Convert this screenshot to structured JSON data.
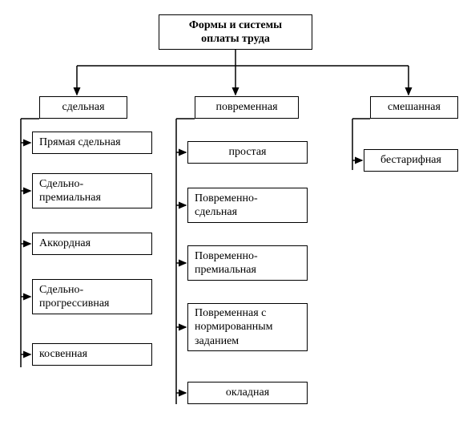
{
  "diagram": {
    "type": "tree",
    "background_color": "#ffffff",
    "stroke_color": "#000000",
    "stroke_width": 1.5,
    "font_family": "Times New Roman",
    "font_size_pt": 11,
    "root": {
      "title_line1": "Формы и системы",
      "title_line2": "оплаты труда"
    },
    "branches": {
      "piecework": {
        "header": "сдельная",
        "items": [
          "Прямая сдельная",
          "Сдельно-\nпремиальная",
          "Аккордная",
          "Сдельно-\nпрогрессивная",
          "косвенная"
        ]
      },
      "timebased": {
        "header": "повременная",
        "items": [
          "простая",
          "Повременно-\nсдельная",
          "Повременно-\nпремиальная",
          "Повременная с\nнормированным\nзаданием",
          "окладная"
        ]
      },
      "mixed": {
        "header": "смешанная",
        "items": [
          "бестарифная"
        ]
      }
    }
  }
}
